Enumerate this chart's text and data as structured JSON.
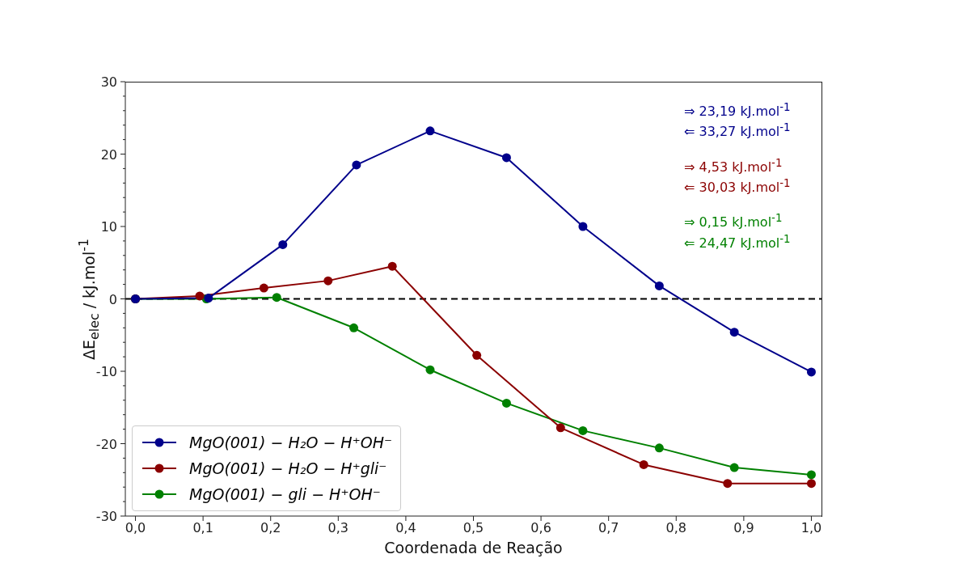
{
  "chart_data": {
    "type": "line",
    "xlabel": "Coordenada de Reação",
    "ylabel": "ΔE$_{elec}$ / kJ.mol$^{-1}$",
    "xlim": [
      -0.015,
      1.015
    ],
    "ylim": [
      -30,
      30
    ],
    "xticks": [
      {
        "value": 0,
        "label": "0,0"
      },
      {
        "value": 0.1,
        "label": "0,1"
      },
      {
        "value": 0.2,
        "label": "0,2"
      },
      {
        "value": 0.3,
        "label": "0,3"
      },
      {
        "value": 0.4,
        "label": "0,4"
      },
      {
        "value": 0.5,
        "label": "0,5"
      },
      {
        "value": 0.6,
        "label": "0,6"
      },
      {
        "value": 0.7,
        "label": "0,7"
      },
      {
        "value": 0.8,
        "label": "0,8"
      },
      {
        "value": 0.9,
        "label": "0,9"
      },
      {
        "value": 1,
        "label": "1,0"
      }
    ],
    "yticks": [
      -30,
      {
        "value": -28,
        "label": null
      },
      {
        "value": -26,
        "label": null
      },
      {
        "value": -24,
        "label": null
      },
      {
        "value": -22,
        "label": null
      },
      -20,
      {
        "value": -18,
        "label": null
      },
      {
        "value": -16,
        "label": null
      },
      {
        "value": -14,
        "label": null
      },
      {
        "value": -12,
        "label": null
      },
      -10,
      {
        "value": -8,
        "label": null
      },
      {
        "value": -6,
        "label": null
      },
      {
        "value": -4,
        "label": null
      },
      {
        "value": -2,
        "label": null
      },
      0,
      {
        "value": 2,
        "label": null
      },
      {
        "value": 4,
        "label": null
      },
      {
        "value": 6,
        "label": null
      },
      {
        "value": 8,
        "label": null
      },
      10,
      {
        "value": 12,
        "label": null
      },
      {
        "value": 14,
        "label": null
      },
      {
        "value": 16,
        "label": null
      },
      {
        "value": 18,
        "label": null
      },
      20,
      {
        "value": 22,
        "label": null
      },
      {
        "value": 24,
        "label": null
      },
      {
        "value": 26,
        "label": null
      },
      {
        "value": 28,
        "label": null
      },
      30
    ],
    "grid": false,
    "legend": "bottom left",
    "marker": "circle",
    "line_style": "solid",
    "series": [
      {
        "name": "MgO(001) − H₂O − H⁺OH⁻",
        "color": "#00008b",
        "x": [
          0,
          0.108,
          0.218,
          0.327,
          0.436,
          0.549,
          0.662,
          0.775,
          0.886,
          1.0
        ],
        "values": [
          0,
          0.1,
          7.5,
          18.5,
          23.2,
          19.5,
          10.0,
          1.8,
          -4.6,
          -10.1
        ]
      },
      {
        "name": "MgO(001) − H₂O − H⁺gli⁻",
        "color": "#8b0000",
        "x": [
          0,
          0.095,
          0.19,
          0.285,
          0.38,
          0.505,
          0.629,
          0.752,
          0.876,
          1.0
        ],
        "values": [
          0,
          0.4,
          1.5,
          2.5,
          4.5,
          -7.8,
          -17.8,
          -22.9,
          -25.5,
          -25.5
        ]
      },
      {
        "name": "MgO(001) − gli − H⁺OH⁻",
        "color": "#008000",
        "x": [
          0,
          0.105,
          0.209,
          0.323,
          0.436,
          0.549,
          0.662,
          0.775,
          0.886,
          1.0
        ],
        "values": [
          0,
          0,
          0.2,
          -4.0,
          -9.8,
          -14.4,
          -18.2,
          -20.6,
          -23.3,
          -24.3
        ]
      }
    ],
    "ref_lines": [
      {
        "axis": "y",
        "value": 0,
        "label": null,
        "color": "#000000",
        "line_style": "dashed"
      }
    ],
    "annotations": [
      "⇒ 23,19 kJ.mol$^{-1}$",
      "⇐ 33,27 kJ.mol$^{-1}$",
      "⇒ 4,53 kJ.mol$^{-1}$",
      "⇐ 30,03 kJ.mol$^{-1}$",
      "⇒ 0,15 kJ.mol$^{-1}$",
      "⇐ 24,47 kJ.mol$^{-1}$"
    ]
  }
}
